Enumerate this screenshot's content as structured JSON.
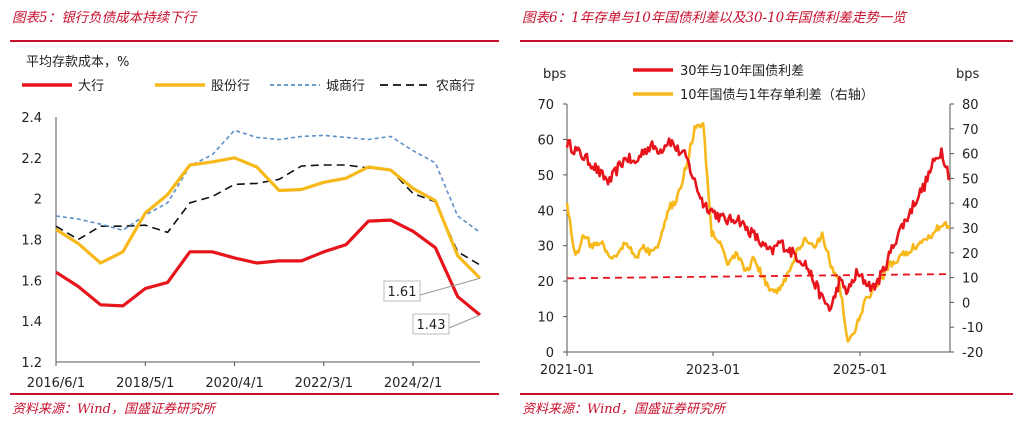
{
  "left": {
    "title": "图表5：银行负债成本持续下行",
    "source": "资料来源：Wind，国盛证券研究所",
    "chart_data": {
      "type": "line",
      "subtitle": "平均存款成本，%",
      "x_ticks": [
        "2016/6/1",
        "2018/5/1",
        "2020/4/1",
        "2022/3/1",
        "2024/2/1"
      ],
      "y_ticks": [
        "1.2",
        "1.4",
        "1.6",
        "1.8",
        "2",
        "2.2",
        "2.4"
      ],
      "ylim": [
        1.2,
        2.4
      ],
      "legend_position": "top",
      "series": [
        {
          "name": "大行",
          "color": "#e8141c",
          "dash": "",
          "values": [
            1.64,
            1.57,
            1.48,
            1.475,
            1.56,
            1.59,
            1.74,
            1.74,
            1.71,
            1.685,
            1.695,
            1.695,
            1.74,
            1.775,
            1.89,
            1.895,
            1.84,
            1.76,
            1.52,
            1.43
          ]
        },
        {
          "name": "股份行",
          "color": "#f7b81a",
          "dash": "",
          "values": [
            1.85,
            1.78,
            1.685,
            1.74,
            1.93,
            2.02,
            2.165,
            2.18,
            2.2,
            2.155,
            2.04,
            2.045,
            2.08,
            2.1,
            2.155,
            2.14,
            2.05,
            1.99,
            1.72,
            1.61
          ]
        },
        {
          "name": "城商行",
          "color": "#5b8fc7",
          "dash": "4,3",
          "values": [
            1.915,
            1.9,
            1.875,
            1.845,
            1.92,
            1.98,
            2.16,
            2.215,
            2.335,
            2.3,
            2.29,
            2.305,
            2.31,
            2.3,
            2.29,
            2.305,
            2.235,
            2.175,
            1.915,
            1.835
          ]
        },
        {
          "name": "农商行",
          "color": "#111111",
          "dash": "8,5",
          "values": [
            1.865,
            1.8,
            1.865,
            1.865,
            1.87,
            1.835,
            1.98,
            2.01,
            2.07,
            2.075,
            2.095,
            2.16,
            2.165,
            2.165,
            2.15,
            2.14,
            2.025,
            1.985,
            1.74,
            1.675
          ]
        }
      ],
      "annotations": [
        {
          "text": "1.61",
          "value": 1.61,
          "series": 1
        },
        {
          "text": "1.43",
          "value": 1.43,
          "series": 0
        }
      ]
    }
  },
  "right": {
    "title": "图表6：1年存单与10年国债利差以及30-10年国债利差走势一览",
    "source": "资料来源：Wind，国盛证券研究所",
    "chart_data": {
      "type": "line",
      "left_unit": "bps",
      "right_unit": "bps",
      "x_ticks": [
        "2021-01",
        "2023-01",
        "2025-01"
      ],
      "y_left_ticks": [
        "0",
        "10",
        "20",
        "30",
        "40",
        "50",
        "60",
        "70"
      ],
      "y_right_ticks": [
        "-20",
        "-10",
        "0",
        "10",
        "20",
        "30",
        "40",
        "50",
        "60",
        "70",
        "80"
      ],
      "ylim_left": [
        0,
        70
      ],
      "ylim_right": [
        -20,
        80
      ],
      "legend_position": "top",
      "series": [
        {
          "name": "30年与10年国债利差",
          "axis": "left",
          "color": "#e8141c",
          "values": [
            59,
            57,
            55,
            53,
            50,
            48,
            52,
            55,
            53,
            57,
            58,
            57,
            60,
            57,
            55,
            48,
            42,
            40,
            38,
            37,
            38,
            35,
            33,
            30,
            28,
            31,
            29,
            27,
            25,
            20,
            15,
            12,
            20,
            17,
            22,
            20,
            18,
            22,
            28,
            34,
            38,
            43,
            47,
            53,
            57,
            49
          ]
        },
        {
          "name": "10年国债与1年存单利差（右轴）",
          "axis": "right",
          "color": "#f7b81a",
          "values": [
            40,
            18,
            28,
            22,
            25,
            18,
            20,
            25,
            18,
            22,
            20,
            25,
            38,
            42,
            55,
            70,
            72,
            28,
            25,
            15,
            20,
            12,
            18,
            10,
            5,
            5,
            12,
            20,
            25,
            22,
            28,
            15,
            8,
            -16,
            -10,
            0,
            5,
            10,
            15,
            18,
            20,
            23,
            25,
            28,
            32,
            30
          ]
        },
        {
          "name": "",
          "axis": "left",
          "color": "#e8141c",
          "dash": "7,5",
          "values": [
            20.8,
            22.0
          ]
        }
      ]
    }
  }
}
